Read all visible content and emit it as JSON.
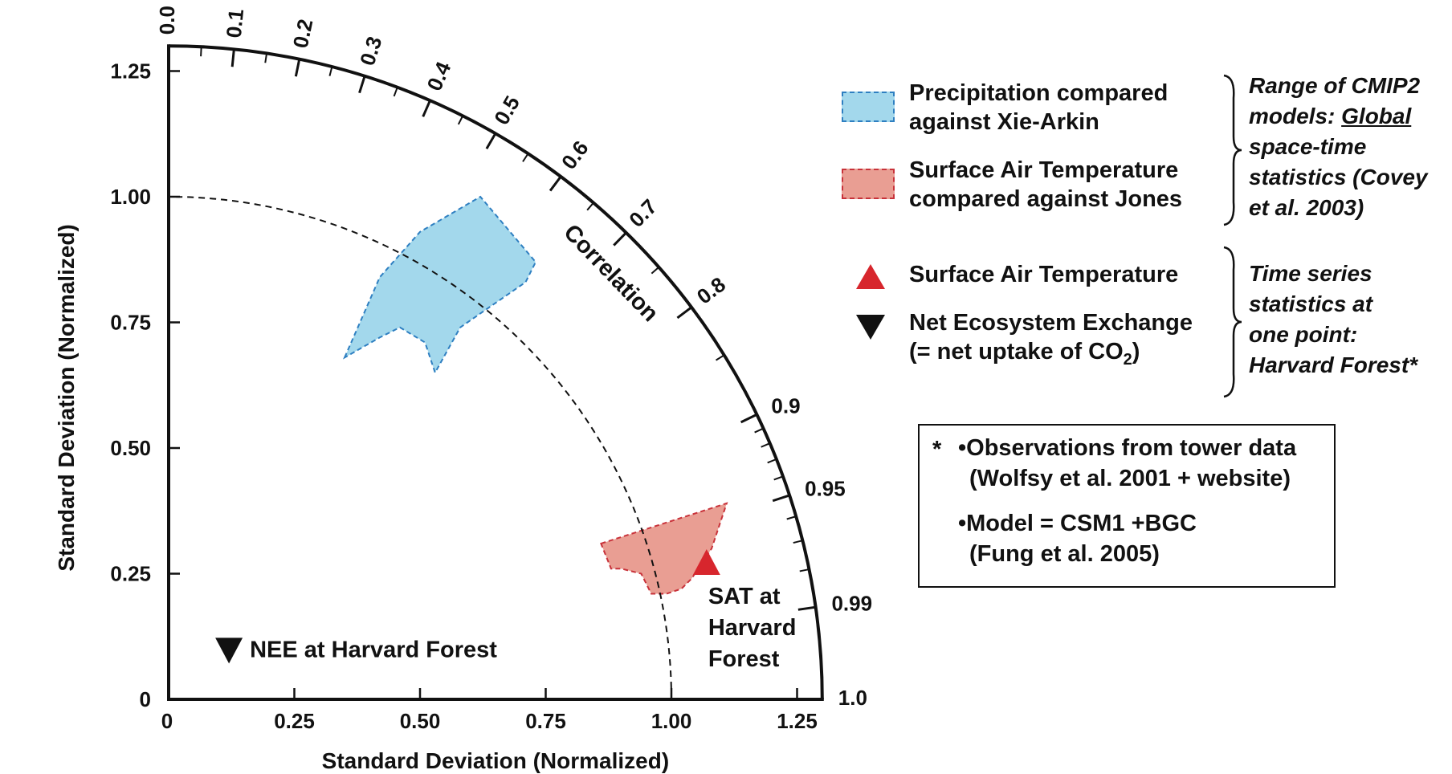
{
  "chart_data": {
    "type": "scatter",
    "subtype": "taylor-diagram",
    "xlabel": "Standard Deviation (Normalized)",
    "ylabel": "Standard Deviation (Normalized)",
    "arc_label": "Correlation",
    "xlim": [
      0,
      1.3
    ],
    "ylim": [
      0,
      1.3
    ],
    "std_ticks": [
      "0",
      "0.25",
      "0.50",
      "0.75",
      "1.00",
      "1.25"
    ],
    "std_tick_values": [
      0,
      0.25,
      0.5,
      0.75,
      1.0,
      1.25
    ],
    "correlation_labels": [
      "0.0",
      "0.1",
      "0.2",
      "0.3",
      "0.4",
      "0.5",
      "0.6",
      "0.7",
      "0.8",
      "0.9",
      "0.95",
      "0.99",
      "1.0"
    ],
    "correlation_values": [
      0.0,
      0.1,
      0.2,
      0.3,
      0.4,
      0.5,
      0.6,
      0.7,
      0.8,
      0.9,
      0.95,
      0.99,
      1.0
    ],
    "reference_circle_std": 1.0,
    "regions": [
      {
        "name": "Precipitation compared against Xie-Arkin",
        "color": "#a3d8ec",
        "edge": "#2e7fc1",
        "polygon": [
          [
            0.35,
            0.68
          ],
          [
            0.42,
            0.84
          ],
          [
            0.5,
            0.93
          ],
          [
            0.62,
            1.0
          ],
          [
            0.73,
            0.87
          ],
          [
            0.71,
            0.83
          ],
          [
            0.58,
            0.74
          ],
          [
            0.53,
            0.65
          ],
          [
            0.51,
            0.71
          ],
          [
            0.46,
            0.74
          ],
          [
            0.42,
            0.72
          ]
        ]
      },
      {
        "name": "Surface Air Temperature compared against Jones",
        "color": "#e99e93",
        "edge": "#c8323a",
        "polygon": [
          [
            0.86,
            0.31
          ],
          [
            1.11,
            0.39
          ],
          [
            1.08,
            0.3
          ],
          [
            1.04,
            0.24
          ],
          [
            1.02,
            0.22
          ],
          [
            0.99,
            0.21
          ],
          [
            0.96,
            0.21
          ],
          [
            0.94,
            0.25
          ],
          [
            0.9,
            0.26
          ],
          [
            0.88,
            0.26
          ]
        ]
      }
    ],
    "points": [
      {
        "name": "Surface Air Temperature",
        "x": 1.07,
        "y": 0.27,
        "marker": "triangle-up",
        "color": "#d7262d",
        "label": "SAT at Harvard Forest",
        "label_lines": [
          "SAT at",
          "Harvard",
          "Forest"
        ]
      },
      {
        "name": "Net Ecosystem Exchange",
        "x": 0.12,
        "y": 0.1,
        "marker": "triangle-down",
        "color": "#111111",
        "label": "NEE at Harvard Forest"
      }
    ]
  },
  "legend": {
    "precip_line1": "Precipitation compared",
    "precip_line2": "against Xie-Arkin",
    "sat_line1": "Surface Air Temperature",
    "sat_line2": "compared against Jones",
    "cmip_note": [
      "Range of CMIP2",
      "models: ",
      "Global",
      "space-time",
      "statistics (Covey",
      "et al. 2003)"
    ],
    "sat_point": "Surface Air Temperature",
    "nee_line1": "Net Ecosystem Exchange",
    "nee_line2_prefix": "(= net uptake of CO",
    "nee_line2_sub": "2",
    "nee_line2_suffix": ")",
    "ts_note": [
      "Time series",
      "statistics at",
      "one point:",
      "Harvard Forest*"
    ]
  },
  "notes": {
    "star": "*",
    "bullet1_line1": "•Observations from tower data",
    "bullet1_line2": "(Wolfsy et al. 2001 + website)",
    "bullet2_line1": "•Model = CSM1 +BGC",
    "bullet2_line2": "(Fung et al. 2005)"
  }
}
